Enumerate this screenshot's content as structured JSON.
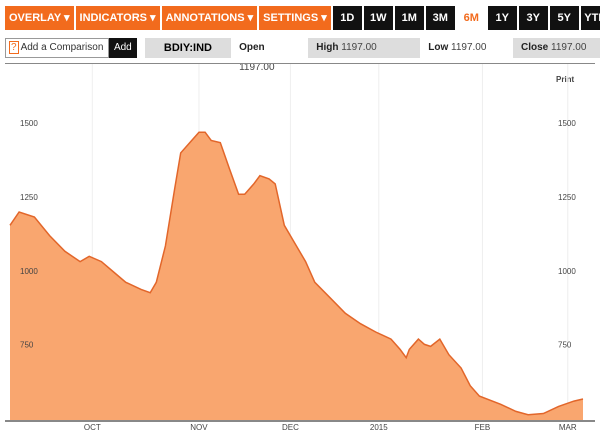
{
  "toolbar": {
    "menus": [
      "OVERLAY ▾",
      "INDICATORS ▾",
      "ANNOTATIONS ▾",
      "SETTINGS ▾"
    ],
    "ranges": [
      "1D",
      "1W",
      "1M",
      "3M",
      "6M",
      "1Y",
      "3Y",
      "5Y",
      "YTD"
    ],
    "active_range": "6M"
  },
  "quote": {
    "compare_placeholder": "Add a Comparison",
    "compare_icon": "?",
    "add_label": "Add",
    "symbol": "BDIY:IND",
    "open_label": "Open",
    "open": "1197.00",
    "high_label": "High",
    "high": "1197.00",
    "low_label": "Low",
    "low": "1197.00",
    "close_label": "Close",
    "close": "1197.00"
  },
  "print_label": "Print",
  "colors": {
    "accent": "#f26b1d",
    "fill": "#f9a66f",
    "line": "#e2662a"
  },
  "chart_data": {
    "type": "area",
    "title": "",
    "xlabel": "",
    "ylabel": "",
    "xlim": [
      0,
      188
    ],
    "ylim": [
      495,
      1700
    ],
    "yticks": [
      750,
      1000,
      1250,
      1500
    ],
    "xticks": [
      {
        "x": 27,
        "label": "OCT"
      },
      {
        "x": 62,
        "label": "NOV"
      },
      {
        "x": 92,
        "label": "DEC"
      },
      {
        "x": 121,
        "label": "2015"
      },
      {
        "x": 155,
        "label": "FEB"
      },
      {
        "x": 183,
        "label": "MAR"
      }
    ],
    "x": [
      0,
      3,
      8,
      13,
      18,
      23,
      26,
      30,
      34,
      38,
      43,
      46,
      48,
      51,
      54,
      56,
      59,
      62,
      64,
      66,
      69,
      72,
      75,
      77,
      80,
      82,
      85,
      87,
      90,
      93,
      97,
      100,
      105,
      110,
      115,
      120,
      125,
      128,
      130,
      131,
      134,
      136,
      138,
      141,
      144,
      148,
      151,
      154,
      161,
      166,
      170,
      175,
      180,
      185,
      188
    ],
    "y": [
      1154,
      1199,
      1182,
      1119,
      1066,
      1031,
      1049,
      1031,
      996,
      961,
      937,
      926,
      961,
      1084,
      1276,
      1399,
      1434,
      1469,
      1469,
      1441,
      1434,
      1346,
      1259,
      1259,
      1294,
      1322,
      1311,
      1294,
      1154,
      1101,
      1031,
      961,
      909,
      856,
      821,
      793,
      769,
      734,
      706,
      734,
      769,
      751,
      744,
      769,
      716,
      671,
      611,
      576,
      548,
      524,
      513,
      517,
      541,
      559,
      566
    ],
    "grid": true,
    "legend": "none"
  }
}
